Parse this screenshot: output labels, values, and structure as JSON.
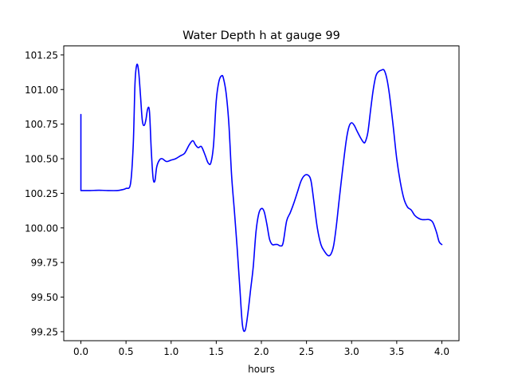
{
  "chart_data": {
    "type": "line",
    "title": "Water Depth h at gauge 99",
    "xlabel": "hours",
    "ylabel": "",
    "xlim": [
      -0.19,
      4.19
    ],
    "ylim": [
      99.185,
      101.315
    ],
    "x_ticks": [
      0.0,
      0.5,
      1.0,
      1.5,
      2.0,
      2.5,
      3.0,
      3.5,
      4.0
    ],
    "x_tick_labels": [
      "0.0",
      "0.5",
      "1.0",
      "1.5",
      "2.0",
      "2.5",
      "3.0",
      "3.5",
      "4.0"
    ],
    "y_ticks": [
      99.25,
      99.5,
      99.75,
      100.0,
      100.25,
      100.5,
      100.75,
      101.0,
      101.25
    ],
    "y_tick_labels": [
      "99.25",
      "99.50",
      "99.75",
      "100.00",
      "100.25",
      "100.50",
      "100.75",
      "101.00",
      "101.25"
    ],
    "grid": false,
    "series": [
      {
        "color": "#0000ff",
        "x": [
          0.0,
          0.0,
          0.1,
          0.2,
          0.3,
          0.4,
          0.45,
          0.5,
          0.55,
          0.58,
          0.6,
          0.62,
          0.64,
          0.66,
          0.68,
          0.7,
          0.72,
          0.74,
          0.76,
          0.78,
          0.8,
          0.82,
          0.84,
          0.87,
          0.9,
          0.95,
          1.0,
          1.05,
          1.1,
          1.15,
          1.2,
          1.24,
          1.27,
          1.3,
          1.33,
          1.35,
          1.38,
          1.41,
          1.44,
          1.47,
          1.5,
          1.53,
          1.56,
          1.58,
          1.61,
          1.64,
          1.67,
          1.7,
          1.73,
          1.76,
          1.79,
          1.82,
          1.85,
          1.88,
          1.91,
          1.94,
          1.97,
          2.0,
          2.03,
          2.06,
          2.09,
          2.12,
          2.15,
          2.18,
          2.21,
          2.24,
          2.28,
          2.32,
          2.36,
          2.4,
          2.44,
          2.48,
          2.52,
          2.55,
          2.58,
          2.62,
          2.66,
          2.7,
          2.74,
          2.77,
          2.8,
          2.83,
          2.86,
          2.9,
          2.94,
          2.97,
          3.0,
          3.03,
          3.06,
          3.1,
          3.13,
          3.15,
          3.18,
          3.21,
          3.24,
          3.27,
          3.3,
          3.33,
          3.36,
          3.39,
          3.42,
          3.46,
          3.5,
          3.54,
          3.58,
          3.62,
          3.66,
          3.7,
          3.74,
          3.78,
          3.82,
          3.86,
          3.9,
          3.94,
          3.97,
          4.0
        ],
        "y": [
          100.82,
          100.27,
          100.27,
          100.272,
          100.27,
          100.27,
          100.275,
          100.285,
          100.32,
          100.6,
          101.05,
          101.18,
          101.13,
          100.96,
          100.78,
          100.74,
          100.78,
          100.86,
          100.84,
          100.56,
          100.36,
          100.34,
          100.44,
          100.49,
          100.5,
          100.48,
          100.49,
          100.5,
          100.52,
          100.54,
          100.6,
          100.63,
          100.6,
          100.58,
          100.59,
          100.57,
          100.52,
          100.47,
          100.47,
          100.6,
          100.92,
          101.06,
          101.1,
          101.08,
          100.97,
          100.75,
          100.38,
          100.13,
          99.87,
          99.58,
          99.3,
          99.26,
          99.38,
          99.55,
          99.72,
          99.97,
          100.1,
          100.14,
          100.12,
          100.03,
          99.92,
          99.88,
          99.88,
          99.88,
          99.87,
          99.89,
          100.05,
          100.11,
          100.18,
          100.26,
          100.34,
          100.38,
          100.38,
          100.34,
          100.2,
          100.0,
          99.88,
          99.83,
          99.8,
          99.81,
          99.87,
          100.01,
          100.19,
          100.42,
          100.63,
          100.73,
          100.76,
          100.74,
          100.7,
          100.65,
          100.62,
          100.62,
          100.69,
          100.85,
          101.0,
          101.1,
          101.13,
          101.14,
          101.14,
          101.08,
          100.96,
          100.74,
          100.5,
          100.33,
          100.21,
          100.15,
          100.13,
          100.09,
          100.07,
          100.06,
          100.06,
          100.06,
          100.04,
          99.97,
          99.9,
          99.88
        ]
      }
    ]
  }
}
